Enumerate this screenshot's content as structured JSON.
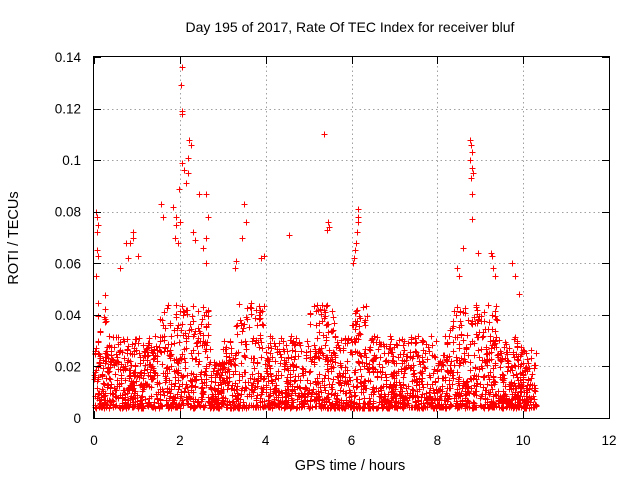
{
  "chart_data": {
    "type": "scatter",
    "title": "Day 195 of 2017, Rate Of TEC Index for receiver bluf",
    "xlabel": "GPS time / hours",
    "ylabel": "ROTI / TECUs",
    "xlim": [
      0,
      12
    ],
    "ylim": [
      0,
      0.14
    ],
    "x_ticks": [
      0,
      2,
      4,
      6,
      8,
      10,
      12
    ],
    "y_ticks": [
      0,
      0.02,
      0.04,
      0.06,
      0.08,
      0.1,
      0.12,
      0.14
    ],
    "x_tick_labels": [
      "0",
      "2",
      "4",
      "6",
      "8",
      "10",
      "12"
    ],
    "y_tick_labels": [
      "0",
      "0.02",
      "0.04",
      "0.06",
      "0.08",
      "0.1",
      "0.12",
      "0.14"
    ],
    "grid": true,
    "marker": "+",
    "marker_color": "#ff0000",
    "data_x_range": [
      0,
      10.3
    ],
    "series": [
      {
        "name": "ROTI",
        "points": [
          [
            2.05,
            0.136
          ],
          [
            2.02,
            0.129
          ],
          [
            2.04,
            0.119
          ],
          [
            2.06,
            0.118
          ],
          [
            2.22,
            0.108
          ],
          [
            2.25,
            0.106
          ],
          [
            2.18,
            0.101
          ],
          [
            2.05,
            0.099
          ],
          [
            2.1,
            0.096
          ],
          [
            2.2,
            0.095
          ],
          [
            2.15,
            0.091
          ],
          [
            1.98,
            0.089
          ],
          [
            5.35,
            0.11
          ],
          [
            8.75,
            0.108
          ],
          [
            8.78,
            0.106
          ],
          [
            8.8,
            0.103
          ],
          [
            8.76,
            0.1
          ],
          [
            8.8,
            0.097
          ],
          [
            8.82,
            0.095
          ],
          [
            8.78,
            0.093
          ],
          [
            8.8,
            0.087
          ],
          [
            8.8,
            0.077
          ],
          [
            0.05,
            0.08
          ],
          [
            0.08,
            0.078
          ],
          [
            0.1,
            0.075
          ],
          [
            0.06,
            0.072
          ],
          [
            0.07,
            0.065
          ],
          [
            0.1,
            0.063
          ],
          [
            0.05,
            0.055
          ],
          [
            1.55,
            0.083
          ],
          [
            1.6,
            0.078
          ],
          [
            1.85,
            0.082
          ],
          [
            1.9,
            0.078
          ],
          [
            1.92,
            0.075
          ],
          [
            1.88,
            0.07
          ],
          [
            1.95,
            0.068
          ],
          [
            2.0,
            0.076
          ],
          [
            2.45,
            0.087
          ],
          [
            2.6,
            0.087
          ],
          [
            2.65,
            0.078
          ],
          [
            2.6,
            0.07
          ],
          [
            2.55,
            0.066
          ],
          [
            2.62,
            0.06
          ],
          [
            2.3,
            0.072
          ],
          [
            2.35,
            0.069
          ],
          [
            3.5,
            0.083
          ],
          [
            3.55,
            0.076
          ],
          [
            3.45,
            0.07
          ],
          [
            4.55,
            0.071
          ],
          [
            5.45,
            0.076
          ],
          [
            5.48,
            0.074
          ],
          [
            5.43,
            0.073
          ],
          [
            6.15,
            0.081
          ],
          [
            6.16,
            0.078
          ],
          [
            6.14,
            0.076
          ],
          [
            6.12,
            0.072
          ],
          [
            6.1,
            0.068
          ],
          [
            6.08,
            0.065
          ],
          [
            6.05,
            0.062
          ],
          [
            6.03,
            0.06
          ],
          [
            0.9,
            0.072
          ],
          [
            0.92,
            0.07
          ],
          [
            0.85,
            0.068
          ],
          [
            0.75,
            0.068
          ],
          [
            1.02,
            0.063
          ],
          [
            0.6,
            0.058
          ],
          [
            0.8,
            0.062
          ],
          [
            3.95,
            0.063
          ],
          [
            3.9,
            0.062
          ],
          [
            3.3,
            0.061
          ],
          [
            3.28,
            0.058
          ],
          [
            8.6,
            0.066
          ],
          [
            8.45,
            0.058
          ],
          [
            8.5,
            0.055
          ],
          [
            8.95,
            0.064
          ],
          [
            9.25,
            0.064
          ],
          [
            9.28,
            0.063
          ],
          [
            9.3,
            0.058
          ],
          [
            9.35,
            0.055
          ],
          [
            9.75,
            0.06
          ],
          [
            9.8,
            0.055
          ],
          [
            9.9,
            0.048
          ]
        ]
      }
    ]
  }
}
